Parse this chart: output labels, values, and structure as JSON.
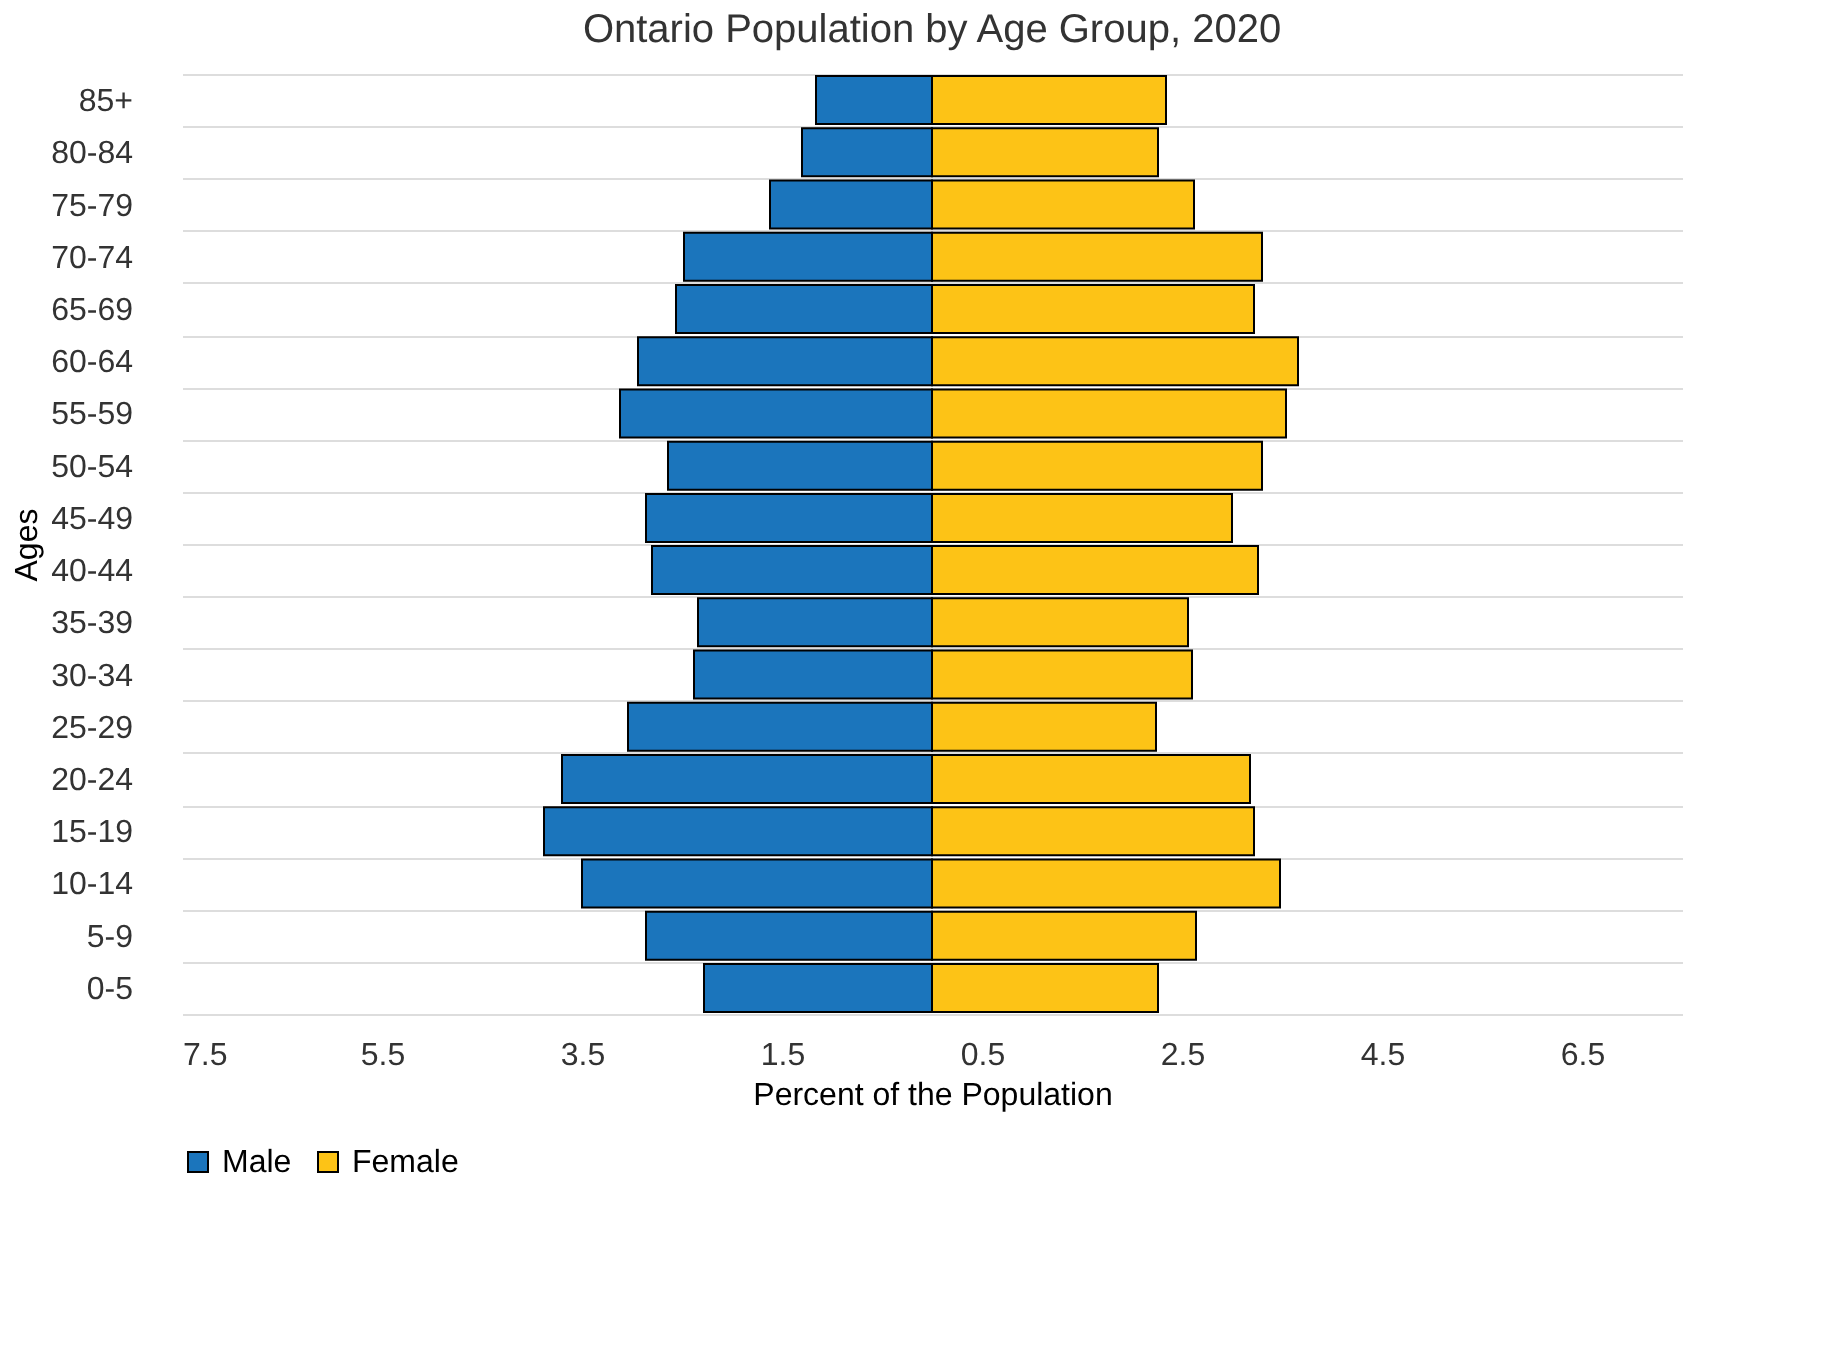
{
  "chart_data": {
    "type": "bar",
    "orientation": "horizontal",
    "title": "Ontario Population by Age Group, 2020",
    "xlabel": "Percent of the Population",
    "ylabel": "Ages",
    "categories": [
      "85+",
      "80-84",
      "75-79",
      "70-74",
      "65-69",
      "60-64",
      "55-59",
      "50-54",
      "45-49",
      "40-44",
      "35-39",
      "30-34",
      "25-29",
      "20-24",
      "15-19",
      "10-14",
      "5-9",
      "0-5"
    ],
    "series": [
      {
        "name": "Male",
        "color": "#1b75bc",
        "values": [
          -1.16,
          -1.3,
          -1.62,
          -2.48,
          -2.56,
          -2.94,
          -3.12,
          -2.64,
          -2.86,
          -2.8,
          -2.34,
          -2.38,
          -3.04,
          -3.7,
          -3.88,
          -3.5,
          -2.86,
          -2.28
        ]
      },
      {
        "name": "Female",
        "color": "#fdc316",
        "values": [
          2.34,
          2.26,
          2.62,
          3.3,
          3.22,
          3.66,
          3.54,
          3.3,
          3.0,
          3.26,
          2.56,
          2.6,
          2.24,
          3.18,
          3.22,
          3.48,
          2.64,
          2.26
        ]
      }
    ],
    "xlim": [
      -7.5,
      7.5
    ],
    "xticks": [
      {
        "value": -7.5,
        "label": "7.5"
      },
      {
        "value": -5.5,
        "label": "5.5"
      },
      {
        "value": -3.5,
        "label": "3.5"
      },
      {
        "value": -1.5,
        "label": "1.5"
      },
      0.5,
      2.5,
      4.5,
      6.5
    ],
    "stacked": true,
    "grid": "y",
    "legend": "bottom"
  }
}
